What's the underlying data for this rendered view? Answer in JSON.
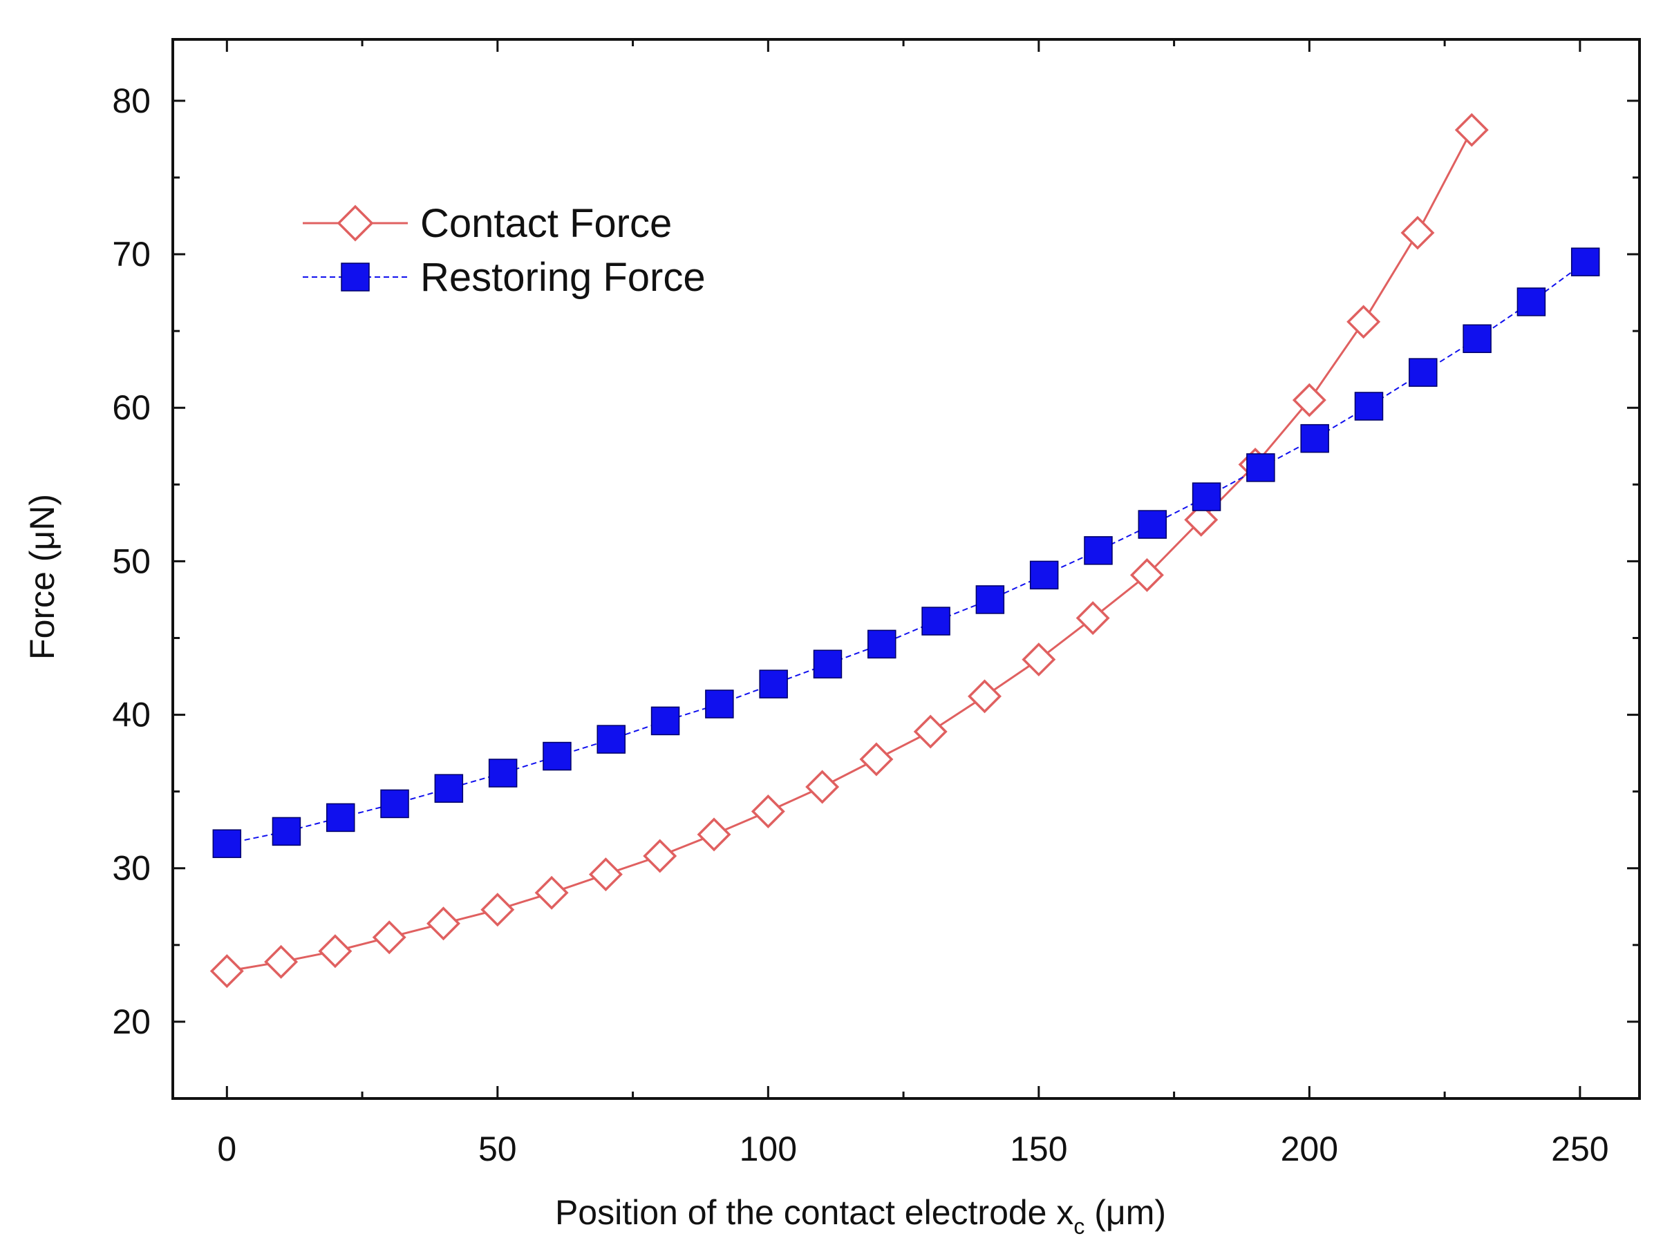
{
  "chart_data": {
    "type": "line",
    "title": "",
    "xlabel_main": "Position of the contact electrode x",
    "xlabel_sub": "c",
    "xlabel_unit": " (μm)",
    "ylabel": "Force (μN)",
    "xlim": [
      -10,
      261
    ],
    "ylim": [
      15,
      84
    ],
    "x_ticks": [
      0,
      50,
      100,
      150,
      200,
      250
    ],
    "x_tick_labels": [
      "0",
      "50",
      "100",
      "150",
      "200",
      "250"
    ],
    "y_ticks": [
      20,
      30,
      40,
      50,
      60,
      70,
      80
    ],
    "y_tick_labels": [
      "20",
      "30",
      "40",
      "50",
      "60",
      "70",
      "80"
    ],
    "grid": false,
    "legend_position": "upper-left",
    "series": [
      {
        "name": "Contact Force",
        "color": "#e06060",
        "marker": "open-diamond",
        "x": [
          0,
          10,
          20,
          30,
          40,
          50,
          60,
          70,
          80,
          90,
          100,
          110,
          120,
          130,
          140,
          150,
          160,
          170,
          180,
          190,
          200,
          210,
          220,
          230
        ],
        "y": [
          23.3,
          23.9,
          24.6,
          25.5,
          26.4,
          27.3,
          28.4,
          29.6,
          30.8,
          32.2,
          33.7,
          35.3,
          37.1,
          38.9,
          41.2,
          43.6,
          46.3,
          49.1,
          52.7,
          56.3,
          60.5,
          65.6,
          71.4,
          78.1
        ]
      },
      {
        "name": "Restoring Force",
        "color": "#1010ee",
        "marker": "filled-square",
        "x": [
          0,
          11,
          21,
          31,
          41,
          51,
          61,
          71,
          81,
          91,
          101,
          111,
          121,
          131,
          141,
          151,
          161,
          171,
          181,
          191,
          201,
          211,
          221,
          231,
          241,
          251
        ],
        "y": [
          31.6,
          32.4,
          33.3,
          34.2,
          35.2,
          36.2,
          37.3,
          38.4,
          39.6,
          40.7,
          42.0,
          43.3,
          44.6,
          46.1,
          47.5,
          49.1,
          50.7,
          52.4,
          54.2,
          56.1,
          58.0,
          60.1,
          62.3,
          64.5,
          66.9,
          69.5
        ]
      }
    ]
  }
}
